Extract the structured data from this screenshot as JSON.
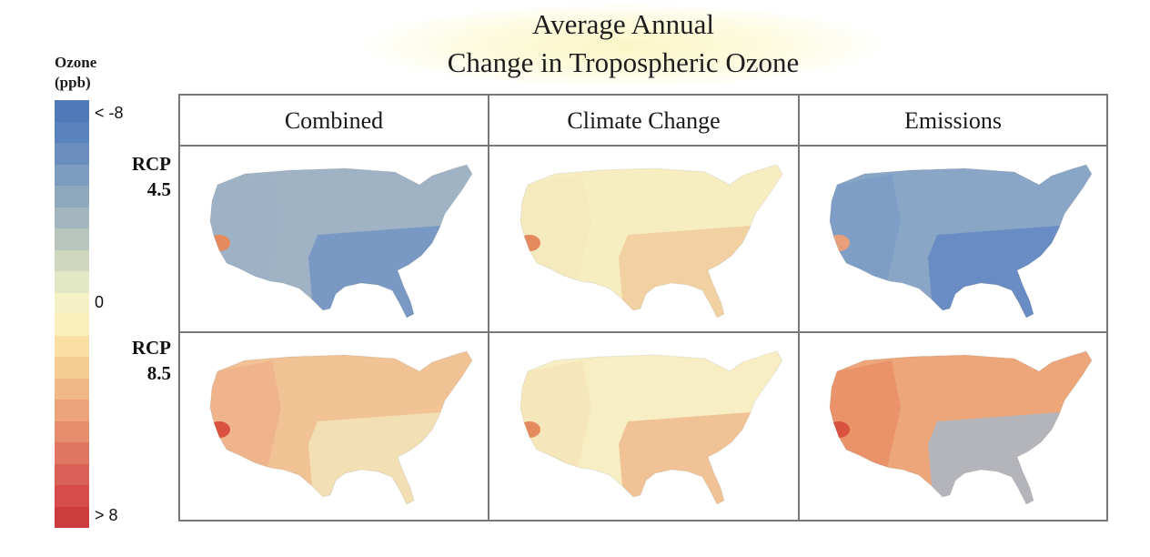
{
  "title": {
    "line1": "Average Annual",
    "line2": "Change in Tropospheric Ozone"
  },
  "legend": {
    "title_line1": "Ozone",
    "title_line2": "(ppb)",
    "top_label": "< -8",
    "zero_label": "0",
    "bottom_label": "> 8",
    "colors": [
      "#4f79b8",
      "#5a82bc",
      "#6a8dbd",
      "#7c9bbf",
      "#8ea8be",
      "#a3b6bd",
      "#b9c5bc",
      "#cfd7bf",
      "#e2e7c6",
      "#f4f2c4",
      "#fbefbb",
      "#f9dfa4",
      "#f5cd93",
      "#f0b887",
      "#eca27b",
      "#e68d6e",
      "#e07562",
      "#da6158",
      "#d54c4b",
      "#cc3c3c"
    ]
  },
  "columns": [
    "Combined",
    "Climate Change",
    "Emissions"
  ],
  "rows": [
    {
      "line1": "RCP",
      "line2": "4.5"
    },
    {
      "line1": "RCP",
      "line2": "8.5"
    }
  ],
  "maps": [
    {
      "row": "RCP 4.5",
      "column": "Combined",
      "base": "#9fb3c4",
      "southeast": "#6f92c4",
      "west": "#9db2c6",
      "hotspot": "#e58a5e"
    },
    {
      "row": "RCP 4.5",
      "column": "Climate Change",
      "base": "#f6eec0",
      "southeast": "#f0c99a",
      "west": "#f5e9bd",
      "hotspot": "#e58a5e"
    },
    {
      "row": "RCP 4.5",
      "column": "Emissions",
      "base": "#8aa6c6",
      "southeast": "#5f86c2",
      "west": "#7c9cc6",
      "hotspot": "#e9a07a"
    },
    {
      "row": "RCP 8.5",
      "column": "Combined",
      "base": "#f0c294",
      "southeast": "#f4e6bc",
      "west": "#eeb28a",
      "hotspot": "#d8523f"
    },
    {
      "row": "RCP 8.5",
      "column": "Climate Change",
      "base": "#f7efc3",
      "southeast": "#eeb68a",
      "west": "#f4e5b8",
      "hotspot": "#e58a5e"
    },
    {
      "row": "RCP 8.5",
      "column": "Emissions",
      "base": "#eda679",
      "southeast": "#a5b8cc",
      "west": "#e98f68",
      "hotspot": "#d8523f"
    }
  ]
}
